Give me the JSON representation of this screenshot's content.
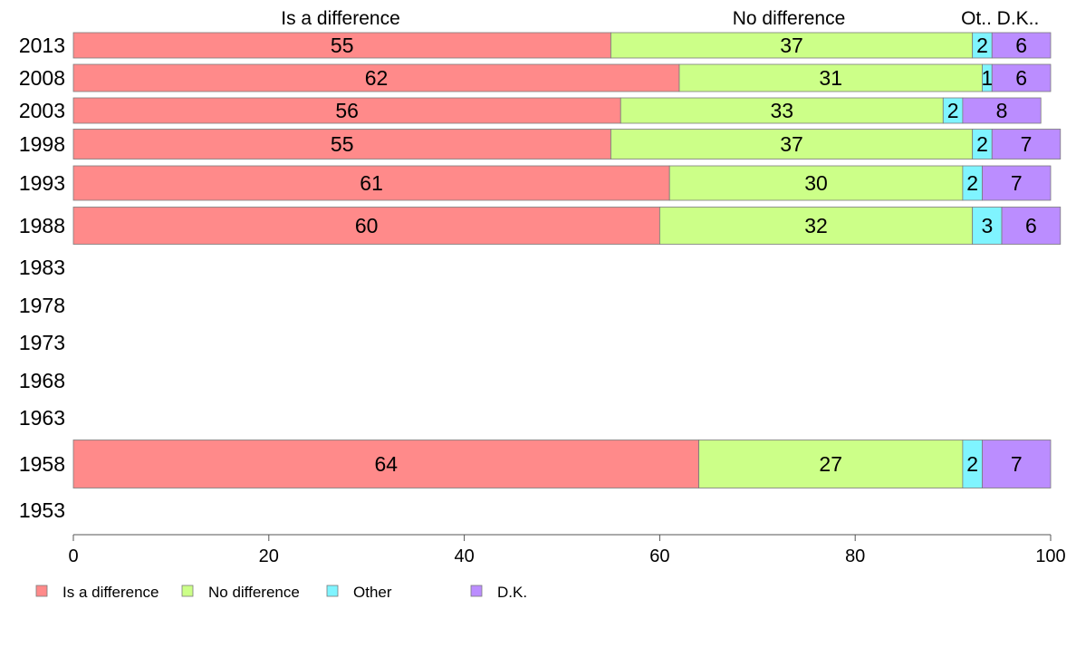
{
  "chart_data": {
    "type": "bar",
    "orientation": "horizontal",
    "stacked": true,
    "xlim": [
      0,
      100
    ],
    "xticks": [
      "0",
      "20",
      "40",
      "60",
      "80",
      "100"
    ],
    "categories": [
      "2013",
      "2008",
      "2003",
      "1998",
      "1993",
      "1988",
      "1983",
      "1978",
      "1973",
      "1968",
      "1963",
      "1958",
      "1953"
    ],
    "series": [
      {
        "name": "Is a difference",
        "color": "#ff8a8a",
        "values": [
          55,
          62,
          56,
          55,
          61,
          60,
          null,
          null,
          null,
          null,
          null,
          64,
          null
        ]
      },
      {
        "name": "No difference",
        "color": "#ccff88",
        "values": [
          37,
          31,
          33,
          37,
          30,
          32,
          null,
          null,
          null,
          null,
          null,
          27,
          null
        ]
      },
      {
        "name": "Other",
        "color": "#7ff4ff",
        "values": [
          2,
          1,
          2,
          2,
          2,
          3,
          null,
          null,
          null,
          null,
          null,
          2,
          null
        ]
      },
      {
        "name": "D.K.",
        "color": "#bb8dff",
        "values": [
          6,
          6,
          8,
          7,
          7,
          6,
          null,
          null,
          null,
          null,
          null,
          7,
          null
        ]
      }
    ],
    "top_labels": [
      "Is a difference",
      "No difference",
      "Ot..",
      "D.K.."
    ],
    "legend_position": "bottom-left",
    "grid": false
  }
}
